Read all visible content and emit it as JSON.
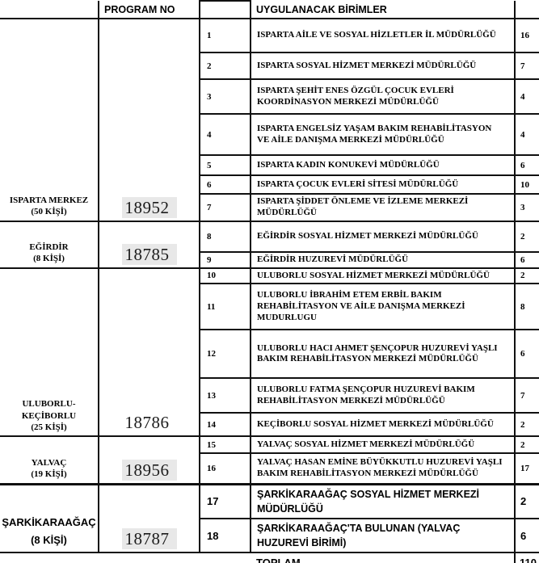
{
  "table": {
    "header": {
      "program_no_label": "PROGRAM NO",
      "units_label": "UYGULANACAK BİRİMLER"
    },
    "regions": [
      {
        "name_lines": [
          "ISPARTA MERKEZ",
          "(50 KİŞİ)"
        ],
        "program_no": "18952",
        "highlighted": true,
        "font": "serif",
        "span": 7
      },
      {
        "name_lines": [
          "EĞİRDİR",
          "(8 KİŞİ)"
        ],
        "program_no": "18785",
        "highlighted": true,
        "font": "serif",
        "span": 2
      },
      {
        "name_lines": [
          "ULUBORLU-",
          "KEÇİBORLU",
          "(25 KİŞİ)"
        ],
        "program_no": "18786",
        "highlighted": false,
        "font": "serif",
        "span": 5
      },
      {
        "name_lines": [
          "YALVAÇ",
          "(19 KİŞİ)"
        ],
        "program_no": "18956",
        "highlighted": true,
        "font": "serif",
        "span": 2
      },
      {
        "name_lines": [
          "ŞARKİKARAAĞAÇ",
          "(8 KİŞİ)"
        ],
        "program_no": "18787",
        "highlighted": true,
        "font": "sans",
        "span": 2
      }
    ],
    "rows": [
      {
        "no": "1",
        "unit": "ISPARTA AİLE VE SOSYAL HİZLETLER İL MÜDÜRLÜĞÜ",
        "count": "16",
        "font": "serif"
      },
      {
        "no": "2",
        "unit": "ISPARTA SOSYAL HİZMET MERKEZİ MÜDÜRLÜĞÜ",
        "count": "7",
        "font": "serif"
      },
      {
        "no": "3",
        "unit": "ISPARTA ŞEHİT ENES ÖZGÜL ÇOCUK EVLERİ KOORDİNASYON MERKEZİ MÜDÜRLÜĞÜ",
        "count": "4",
        "font": "serif"
      },
      {
        "no": "4",
        "unit": "ISPARTA ENGELSİZ YAŞAM BAKIM REHABİLİTASYON VE AİLE DANIŞMA MERKEZİ MÜDÜRLÜĞÜ",
        "count": "4",
        "font": "serif"
      },
      {
        "no": "5",
        "unit": "ISPARTA KADIN KONUKEVİ MÜDÜRLÜĞÜ",
        "count": "6",
        "font": "serif"
      },
      {
        "no": "6",
        "unit": "ISPARTA ÇOCUK EVLERİ SİTESİ MÜDÜRLÜĞÜ",
        "count": "10",
        "font": "serif"
      },
      {
        "no": "7",
        "unit": "ISPARTA ŞİDDET ÖNLEME VE İZLEME MERKEZİ MÜDÜRLÜĞÜ",
        "count": "3",
        "font": "serif"
      },
      {
        "no": "8",
        "unit": "EĞİRDİR SOSYAL HİZMET MERKEZİ MÜDÜRLÜĞÜ",
        "count": "2",
        "font": "serif"
      },
      {
        "no": "9",
        "unit": "EĞİRDİR HUZUREVİ MÜDÜRLÜĞÜ",
        "count": "6",
        "font": "serif"
      },
      {
        "no": "10",
        "unit": "ULUBORLU SOSYAL HİZMET MERKEZİ MÜDÜRLÜĞÜ",
        "count": "2",
        "font": "serif"
      },
      {
        "no": "11",
        "unit": "ULUBORLU İBRAHİM ETEM ERBİL BAKIM REHABİLİTASYON VE AİLE DANIŞMA MERKEZİ MUDURLUGU",
        "count": "8",
        "font": "serif"
      },
      {
        "no": "12",
        "unit": "ULUBORLU HACI AHMET ŞENÇOPUR HUZUREVİ YAŞLI BAKIM REHABİLİTASYON MERKEZİ MÜDÜRLÜĞÜ",
        "count": "6",
        "font": "serif"
      },
      {
        "no": "13",
        "unit": "ULUBORLU FATMA ŞENÇOPUR HUZUREVİ BAKIM REHABİLİTASYON MERKEZİ MÜDÜRLÜĞÜ",
        "count": "7",
        "font": "serif"
      },
      {
        "no": "14",
        "unit": "KEÇİBORLU SOSYAL HİZMET MERKEZİ MÜDÜRLÜĞÜ",
        "count": "2",
        "font": "serif"
      },
      {
        "no": "15",
        "unit": "YALVAÇ SOSYAL HİZMET MERKEZİ MÜDÜRLÜĞÜ",
        "count": "2",
        "font": "serif"
      },
      {
        "no": "16",
        "unit": "YALVAÇ HASAN EMİNE BÜYÜKKUTLU HUZUREVİ YAŞLI BAKIM REHABİLİTASYON MERKEZİ MÜDÜRLÜĞÜ",
        "count": "17",
        "font": "serif"
      },
      {
        "no": "17",
        "unit": "ŞARKİKARAAĞAÇ SOSYAL HİZMET MERKEZİ MÜDÜRLÜĞÜ",
        "count": "2",
        "font": "sans"
      },
      {
        "no": "18",
        "unit": "ŞARKİKARAAĞAÇ'TA BULUNAN (YALVAÇ HUZUREVİ BİRİMİ)",
        "count": "6",
        "font": "sans"
      }
    ],
    "total": {
      "label": "TOPLAM",
      "value": "110"
    }
  },
  "colors": {
    "border": "#101010",
    "highlight_bg": "#e8e8e8",
    "text": "#000000",
    "program_no_text": "#1c1c1c"
  }
}
